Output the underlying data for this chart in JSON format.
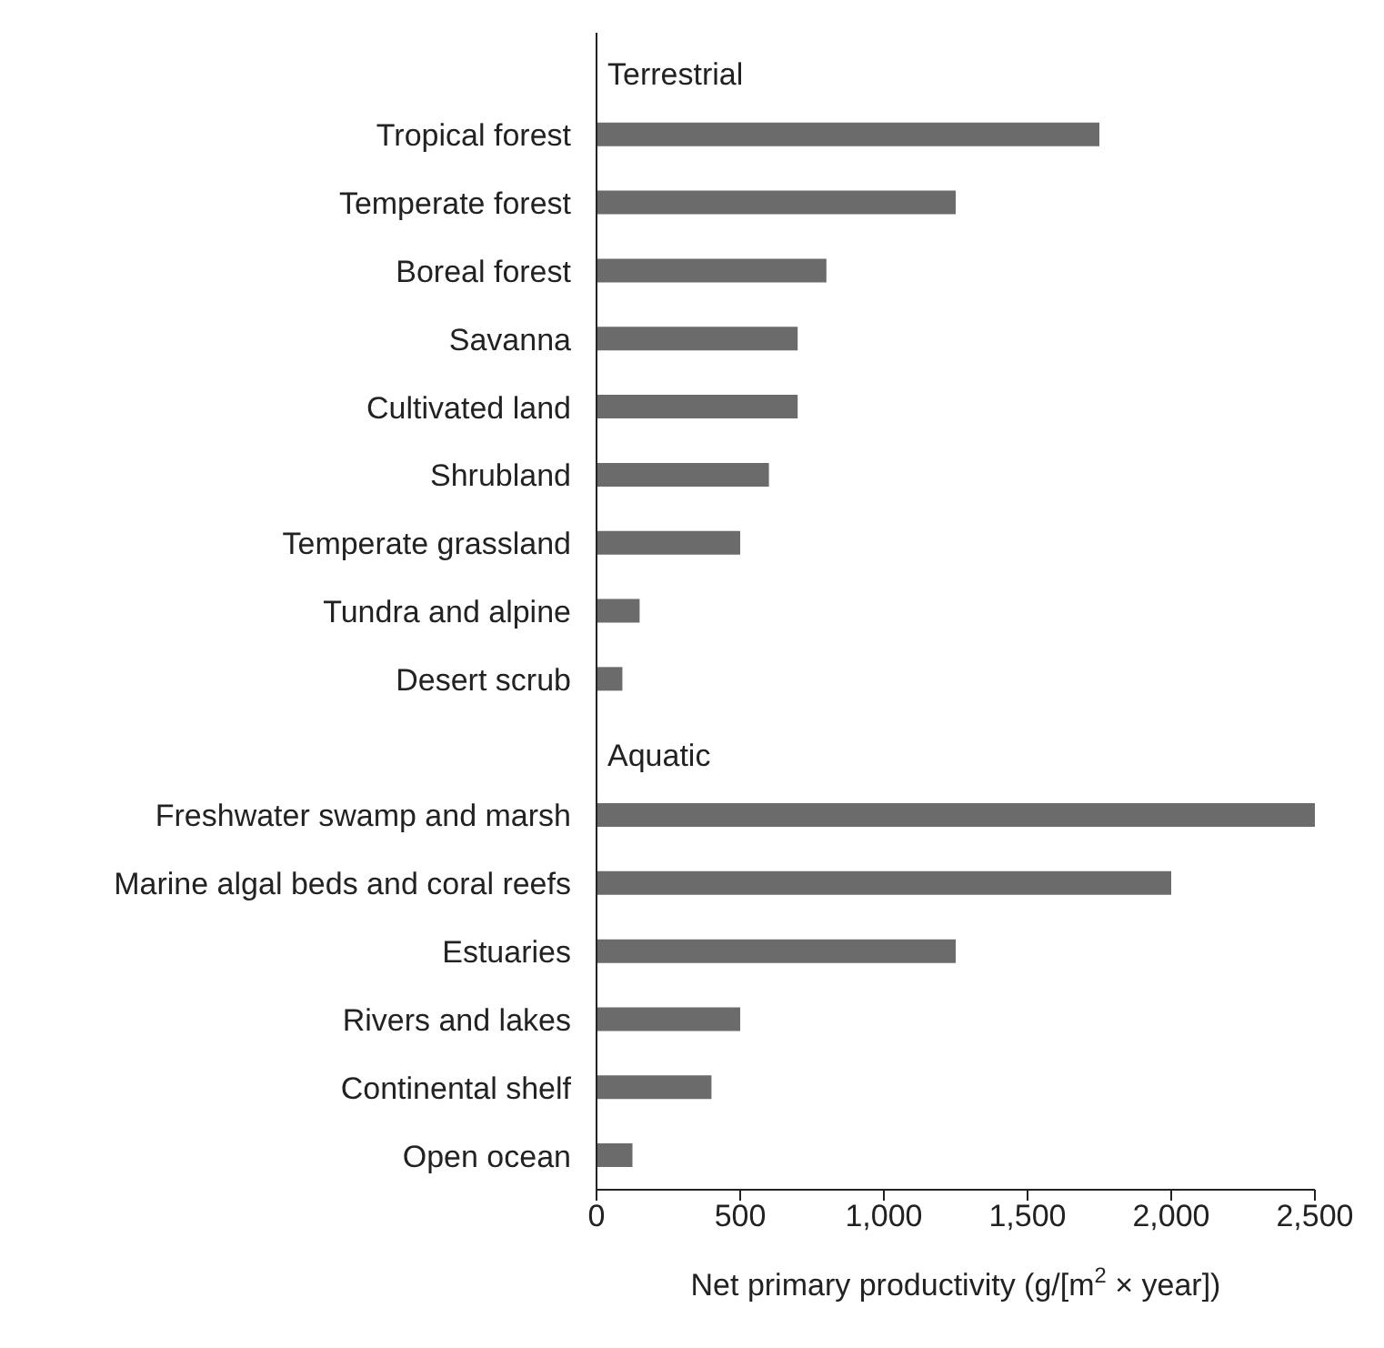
{
  "chart_data": {
    "type": "bar",
    "orientation": "horizontal",
    "xlabel": "Net primary productivity (g/[m$^{2}$ × year])",
    "categories": [
      null,
      "Tropical forest",
      "Temperate forest",
      "Boreal forest",
      "Savanna",
      "Cultivated land",
      "Shrubland",
      "Temperate grassland",
      "Tundra and alpine",
      "Desert scrub",
      null,
      "Freshwater swamp and marsh",
      "Marine algal beds and coral reefs",
      "Estuaries",
      "Rivers and lakes",
      "Continental shelf",
      "Open ocean"
    ],
    "values": [
      null,
      1750,
      1250,
      800,
      700,
      700,
      600,
      500,
      150,
      90,
      null,
      2500,
      2000,
      1250,
      500,
      400,
      125
    ],
    "color": "#6b6b6b",
    "annotations": [
      "Terrestrial",
      "Aquatic"
    ],
    "xlim": [
      0,
      2500
    ],
    "xticks": [
      0,
      500,
      {
        "value": 1000,
        "label": "1,000"
      },
      {
        "value": 1500,
        "label": "1,500"
      },
      {
        "value": 2000,
        "label": "2,000"
      },
      {
        "value": 2500,
        "label": "2,500"
      }
    ],
    "grid": false
  }
}
